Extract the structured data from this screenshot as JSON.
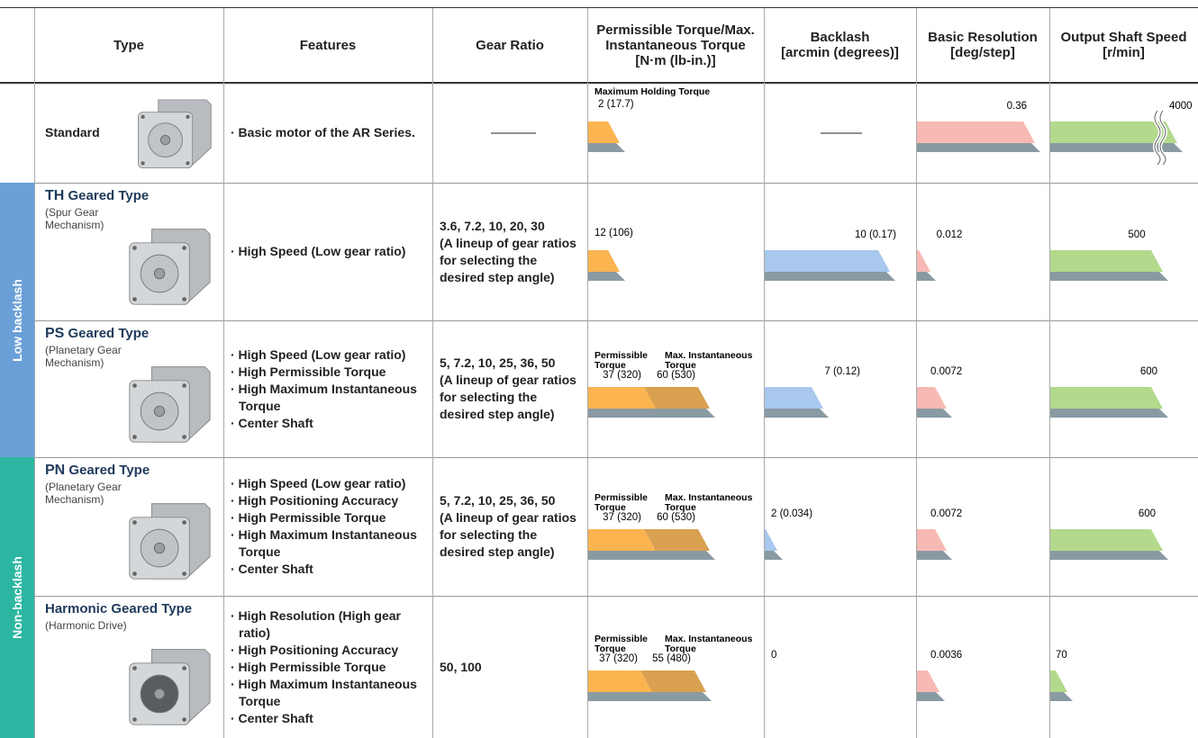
{
  "header": {
    "columns": [
      [
        "Type"
      ],
      [
        "Features"
      ],
      [
        "Gear Ratio"
      ],
      [
        "Permissible Torque/Max.",
        "Instantaneous Torque",
        "[N·m (lb-in.)]"
      ],
      [
        "Backlash",
        "[arcmin (degrees)]"
      ],
      [
        "Basic Resolution",
        "[deg/step]"
      ],
      [
        "Output Shaft Speed",
        "[r/min]"
      ]
    ]
  },
  "group_labels": {
    "low_backlash": "Low backlash",
    "non_backlash": "Non-backlash"
  },
  "rows": [
    {
      "name": "Standard",
      "features": [
        "· Basic motor of the AR Series."
      ],
      "torque": {
        "labels": [
          [
            "Maximum Holding Torque"
          ]
        ],
        "values": [
          "2 (17.7)"
        ]
      },
      "resolution": "0.36",
      "speed": "4000"
    },
    {
      "code": "TH",
      "name": "Geared Type",
      "mechanism": "(Spur Gear Mechanism)",
      "features": [
        "· High Speed (Low gear ratio)"
      ],
      "gear_ratio": {
        "ratios": "3.6, 7.2, 10, 20, 30",
        "note": "(A lineup of gear ratios for selecting the desired step angle)"
      },
      "torque": {
        "values": [
          "12 (106)"
        ]
      },
      "backlash": "10 (0.17)",
      "resolution": "0.012",
      "speed": "500"
    },
    {
      "code": "PS",
      "name": "Geared Type",
      "mechanism": "(Planetary Gear Mechanism)",
      "features": [
        "· High Speed (Low gear ratio)",
        "· High Permissible Torque",
        "· High Maximum Instantaneous Torque",
        "· Center Shaft"
      ],
      "gear_ratio": {
        "ratios": "5, 7.2, 10, 25, 36, 50",
        "note": "(A lineup of gear ratios for selecting the desired step angle)"
      },
      "torque": {
        "labels": [
          [
            "Permissible",
            "Torque"
          ],
          [
            "Max. Instantaneous",
            "Torque"
          ]
        ],
        "values": [
          "37 (320)",
          "60 (530)"
        ]
      },
      "backlash": "7 (0.12)",
      "resolution": "0.0072",
      "speed": "600"
    },
    {
      "code": "PN",
      "name": "Geared Type",
      "mechanism": "(Planetary Gear Mechanism)",
      "features": [
        "· High Speed (Low gear ratio)",
        "· High Positioning Accuracy",
        "· High Permissible Torque",
        "· High Maximum Instantaneous Torque",
        "· Center Shaft"
      ],
      "gear_ratio": {
        "ratios": "5, 7.2, 10, 25, 36, 50",
        "note": "(A lineup of gear ratios for selecting the desired step angle)"
      },
      "torque": {
        "labels": [
          [
            "Permissible",
            "Torque"
          ],
          [
            "Max. Instantaneous",
            "Torque"
          ]
        ],
        "values": [
          "37 (320)",
          "60 (530)"
        ]
      },
      "backlash": "2 (0.034)",
      "resolution": "0.0072",
      "speed": "600"
    },
    {
      "name": "Harmonic Geared Type",
      "mechanism": "(Harmonic Drive)",
      "features": [
        "· High Resolution (High gear ratio)",
        "· High Positioning Accuracy",
        "· High Permissible Torque",
        "· High Maximum Instantaneous Torque",
        "· Center Shaft"
      ],
      "gear_ratio": {
        "ratios": "50, 100"
      },
      "torque": {
        "labels": [
          [
            "Permissible",
            "Torque"
          ],
          [
            "Max. Instantaneous",
            "Torque"
          ]
        ],
        "values": [
          "37 (320)",
          "55 (480)"
        ]
      },
      "backlash": "0",
      "resolution": "0.0036",
      "speed": "70"
    }
  ]
}
